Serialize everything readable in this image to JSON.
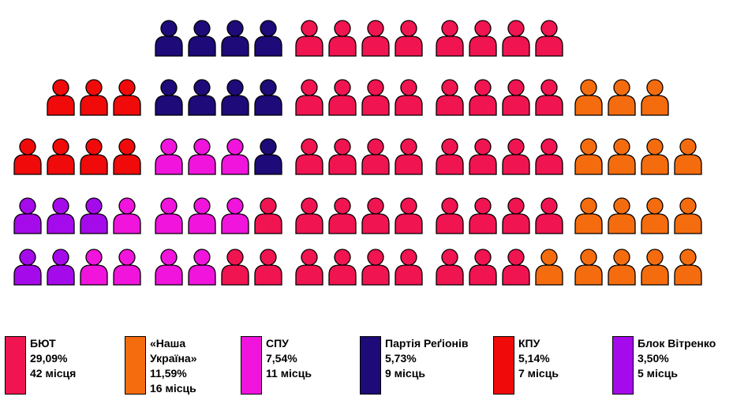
{
  "chart_data": {
    "type": "seat-chart",
    "total_seats": 90,
    "parties": [
      {
        "id": "byut",
        "name": "БЮТ",
        "percent": "29,09%",
        "seats_text": "42 місця",
        "seats": 42,
        "color": "#f01450"
      },
      {
        "id": "nu",
        "name": "«Наша Україна»",
        "percent": "11,59%",
        "seats_text": "16 місць",
        "seats": 16,
        "color": "#f56c0e"
      },
      {
        "id": "spu",
        "name": "СПУ",
        "percent": "7,54%",
        "seats_text": "11 місць",
        "seats": 11,
        "color": "#f014dc"
      },
      {
        "id": "regions",
        "name": "Партія Реґіонів",
        "percent": "5,73%",
        "seats_text": "9 місць",
        "seats": 9,
        "color": "#1e0a78"
      },
      {
        "id": "kpu",
        "name": "КПУ",
        "percent": "5,14%",
        "seats_text": "7 місць",
        "seats": 7,
        "color": "#f00a0a"
      },
      {
        "id": "vitrenko",
        "name": "Блок Вітренко",
        "percent": "3,50%",
        "seats_text": "5 місць",
        "seats": 5,
        "color": "#a50aeb"
      }
    ]
  }
}
